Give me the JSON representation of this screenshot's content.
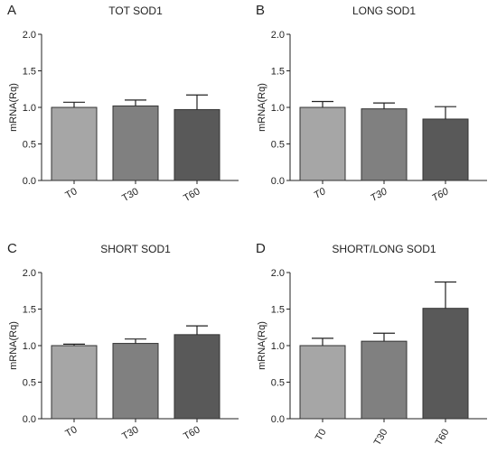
{
  "chart_data": [
    {
      "type": "bar",
      "letter": "A",
      "title": "TOT SOD1",
      "ylabel": "mRNA(Rq)",
      "categories": [
        "T0",
        "T30",
        "T60"
      ],
      "values": [
        1.0,
        1.02,
        0.97
      ],
      "errors": [
        0.07,
        0.08,
        0.2
      ],
      "bar_colors": [
        "#a6a6a6",
        "#808080",
        "#595959"
      ],
      "ylim": [
        0,
        2.0
      ],
      "yticks": [
        "0.0",
        "0.5",
        "1.0",
        "1.5",
        "2.0"
      ],
      "x_labels_italic": false,
      "x_labels_angle": -30
    },
    {
      "type": "bar",
      "letter": "B",
      "title": "LONG SOD1",
      "ylabel": "mRNA(Rq)",
      "categories": [
        "T0",
        "T30",
        "T60"
      ],
      "values": [
        1.0,
        0.98,
        0.84
      ],
      "errors": [
        0.08,
        0.08,
        0.17
      ],
      "bar_colors": [
        "#a6a6a6",
        "#808080",
        "#595959"
      ],
      "ylim": [
        0,
        2.0
      ],
      "yticks": [
        "0.0",
        "0.5",
        "1.0",
        "1.5",
        "2.0"
      ],
      "x_labels_italic": true,
      "x_labels_angle": -30
    },
    {
      "type": "bar",
      "letter": "C",
      "title": "SHORT SOD1",
      "ylabel": "mRNA(Rq)",
      "categories": [
        "T0",
        "T30",
        "T60"
      ],
      "values": [
        1.0,
        1.03,
        1.15
      ],
      "errors": [
        0.02,
        0.06,
        0.12
      ],
      "bar_colors": [
        "#a6a6a6",
        "#808080",
        "#595959"
      ],
      "ylim": [
        0,
        2.0
      ],
      "yticks": [
        "0.0",
        "0.5",
        "1.0",
        "1.5",
        "2.0"
      ],
      "x_labels_italic": false,
      "x_labels_angle": -30
    },
    {
      "type": "bar",
      "letter": "D",
      "title": "SHORT/LONG SOD1",
      "ylabel": "mRNA(Rq)",
      "categories": [
        "T0",
        "T30",
        "T60"
      ],
      "values": [
        1.0,
        1.06,
        1.51
      ],
      "errors": [
        0.1,
        0.11,
        0.36
      ],
      "bar_colors": [
        "#a6a6a6",
        "#808080",
        "#595959"
      ],
      "ylim": [
        0,
        2.0
      ],
      "yticks": [
        "0.0",
        "0.5",
        "1.0",
        "1.5",
        "2.0"
      ],
      "x_labels_italic": false,
      "x_labels_angle": -60
    }
  ]
}
